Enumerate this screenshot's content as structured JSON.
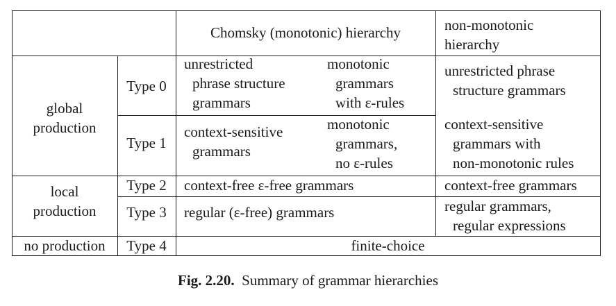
{
  "table": {
    "header": {
      "chomsky": "Chomsky (monotonic) hierarchy",
      "nonmono_l1": "non-monotonic",
      "nonmono_l2": "hierarchy"
    },
    "groups": {
      "global": [
        "global",
        "production"
      ],
      "local": [
        "local",
        "production"
      ],
      "none": "no production"
    },
    "types": {
      "t0": "Type 0",
      "t1": "Type 1",
      "t2": "Type 2",
      "t3": "Type 3",
      "t4": "Type 4"
    },
    "chomsky": {
      "t0_left": [
        "unrestricted",
        "phrase structure",
        "grammars"
      ],
      "t0_right": [
        "monotonic",
        "grammars",
        "with ε-rules"
      ],
      "t1_left": [
        "context-sensitive",
        "grammars"
      ],
      "t1_right": [
        "monotonic",
        "grammars,",
        "no ε-rules"
      ],
      "t2": "context-free ε-free grammars",
      "t3": "regular (ε-free) grammars",
      "t4": "finite-choice"
    },
    "nonmono": {
      "t0": [
        "unrestricted phrase",
        "structure grammars"
      ],
      "t1": [
        "context-sensitive",
        "grammars with",
        "non-monotonic rules"
      ],
      "t2": "context-free grammars",
      "t3": [
        "regular grammars,",
        "regular expressions"
      ]
    }
  },
  "caption": {
    "label": "Fig. 2.20.",
    "text": "Summary of grammar hierarchies"
  }
}
